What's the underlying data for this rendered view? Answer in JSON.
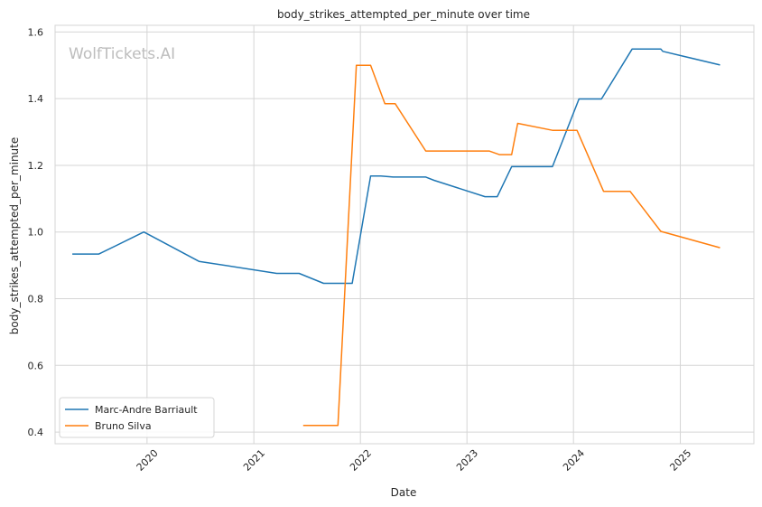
{
  "chart_data": {
    "type": "line",
    "title": "body_strikes_attempted_per_minute over time",
    "xlabel": "Date",
    "ylabel": "body_strikes_attempted_per_minute",
    "watermark": "WolfTickets.AI",
    "x_ticks": [
      "2020",
      "2021",
      "2022",
      "2023",
      "2024",
      "2025"
    ],
    "y_ticks": [
      "0.4",
      "0.6",
      "0.8",
      "1.0",
      "1.2",
      "1.4",
      "1.6"
    ],
    "xlim": [
      "2019-02-20",
      "2025-09-10"
    ],
    "ylim": [
      0.365,
      1.62
    ],
    "grid": true,
    "legend_position": "lower-left",
    "series": [
      {
        "name": "Marc-Andre Barriault",
        "color": "#1f77b4",
        "points": [
          [
            "2019-04-20",
            0.934
          ],
          [
            "2019-07-20",
            0.934
          ],
          [
            "2019-12-21",
            1.0
          ],
          [
            "2020-06-27",
            0.912
          ],
          [
            "2021-03-20",
            0.876
          ],
          [
            "2021-06-05",
            0.876
          ],
          [
            "2021-08-28",
            0.846
          ],
          [
            "2021-12-04",
            0.846
          ],
          [
            "2022-02-05",
            1.168
          ],
          [
            "2022-03-12",
            1.168
          ],
          [
            "2022-04-23",
            1.165
          ],
          [
            "2022-08-13",
            1.165
          ],
          [
            "2022-09-10",
            1.155
          ],
          [
            "2023-03-04",
            1.106
          ],
          [
            "2023-04-15",
            1.106
          ],
          [
            "2023-06-03",
            1.196
          ],
          [
            "2023-10-21",
            1.196
          ],
          [
            "2024-01-20",
            1.399
          ],
          [
            "2024-04-06",
            1.399
          ],
          [
            "2024-07-20",
            1.549
          ],
          [
            "2024-10-26",
            1.549
          ],
          [
            "2024-11-02",
            1.542
          ],
          [
            "2025-05-17",
            1.501
          ]
        ]
      },
      {
        "name": "Bruno Silva",
        "color": "#ff7f0e",
        "points": [
          [
            "2021-06-19",
            0.42
          ],
          [
            "2021-10-16",
            0.42
          ],
          [
            "2021-12-18",
            1.5
          ],
          [
            "2022-02-05",
            1.5
          ],
          [
            "2022-03-26",
            1.385
          ],
          [
            "2022-04-30",
            1.385
          ],
          [
            "2022-08-13",
            1.243
          ],
          [
            "2023-03-18",
            1.243
          ],
          [
            "2023-04-22",
            1.232
          ],
          [
            "2023-06-03",
            1.232
          ],
          [
            "2023-06-24",
            1.326
          ],
          [
            "2023-10-21",
            1.305
          ],
          [
            "2024-01-13",
            1.305
          ],
          [
            "2024-04-13",
            1.122
          ],
          [
            "2024-07-13",
            1.122
          ],
          [
            "2024-10-26",
            1.002
          ],
          [
            "2025-05-17",
            0.953
          ]
        ]
      }
    ]
  }
}
